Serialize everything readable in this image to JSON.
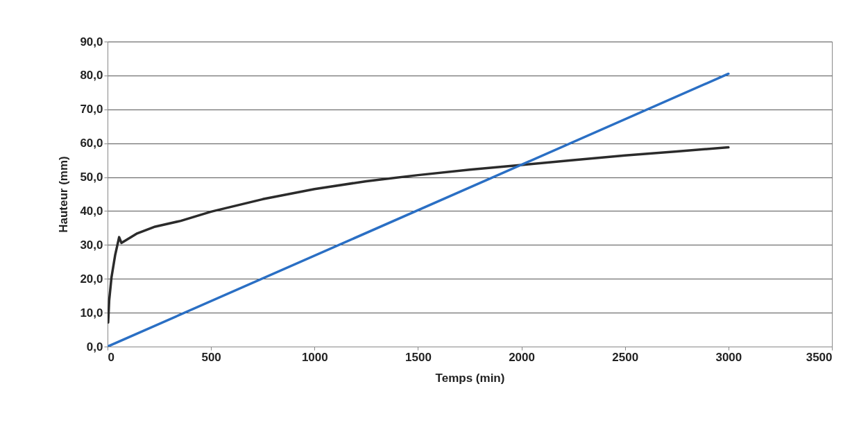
{
  "chart_data": {
    "type": "line",
    "xlabel": "Temps (min)",
    "ylabel": "Hauteur (mm)",
    "xlim": [
      0,
      3500
    ],
    "xticks": [
      0,
      500,
      1000,
      1500,
      2000,
      2500,
      3000,
      3500
    ],
    "ylim": [
      0,
      90
    ],
    "yticks": [
      {
        "value": 0,
        "label": "0,0"
      },
      {
        "value": 10,
        "label": "10,0"
      },
      {
        "value": 20,
        "label": "20,0"
      },
      {
        "value": 30,
        "label": "30,0"
      },
      {
        "value": 40,
        "label": "40,0"
      },
      {
        "value": 50,
        "label": "50,0"
      },
      {
        "value": 60,
        "label": "60,0"
      },
      {
        "value": 70,
        "label": "70,0"
      },
      {
        "value": 80,
        "label": "80,0"
      },
      {
        "value": 90,
        "label": "90,0"
      }
    ],
    "grid": "y",
    "marker": "none",
    "line_style": "solid",
    "series": [
      {
        "color": "#2b2b2b",
        "x": [
          3,
          8,
          19,
          37,
          56,
          67,
          140,
          230,
          354,
          500,
          750,
          1000,
          1250,
          1500,
          1750,
          2000,
          2250,
          2500,
          2750,
          3000
        ],
        "values": [
          7.1,
          13.7,
          20.4,
          27.1,
          32.3,
          30.6,
          33.3,
          35.4,
          37.1,
          39.8,
          43.5,
          46.5,
          48.8,
          50.6,
          52.2,
          53.6,
          55.0,
          56.4,
          57.6,
          58.8
        ]
      },
      {
        "color": "#2a6fc4",
        "x": [
          0,
          3000
        ],
        "values": [
          0,
          80.5
        ]
      }
    ]
  }
}
